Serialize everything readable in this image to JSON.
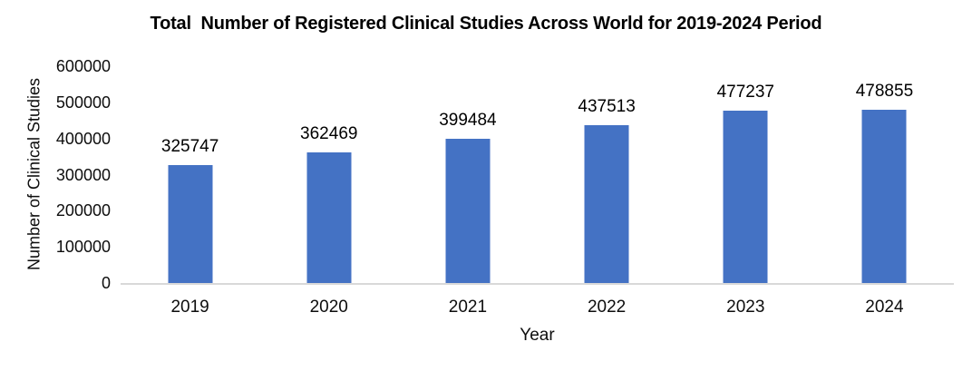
{
  "chart_data": {
    "type": "bar",
    "title": "Total  Number of Registered Clinical Studies Across World for 2019-2024 Period",
    "categories": [
      "2019",
      "2020",
      "2021",
      "2022",
      "2023",
      "2024"
    ],
    "values": [
      325747,
      362469,
      399484,
      437513,
      477237,
      478855
    ],
    "xlabel": "Year",
    "ylabel": "Number of Clinical Studies",
    "ylim": [
      0,
      600000
    ],
    "yticks": [
      0,
      100000,
      200000,
      300000,
      400000,
      500000,
      600000
    ],
    "grid": false,
    "legend_position": "none",
    "data_labels": true,
    "bar_color": "#4472c4",
    "axis_line_color": "#d9d9d9",
    "text_color": "#0d0d0d",
    "title_color": "#000000",
    "background_color": "#ffffff"
  }
}
